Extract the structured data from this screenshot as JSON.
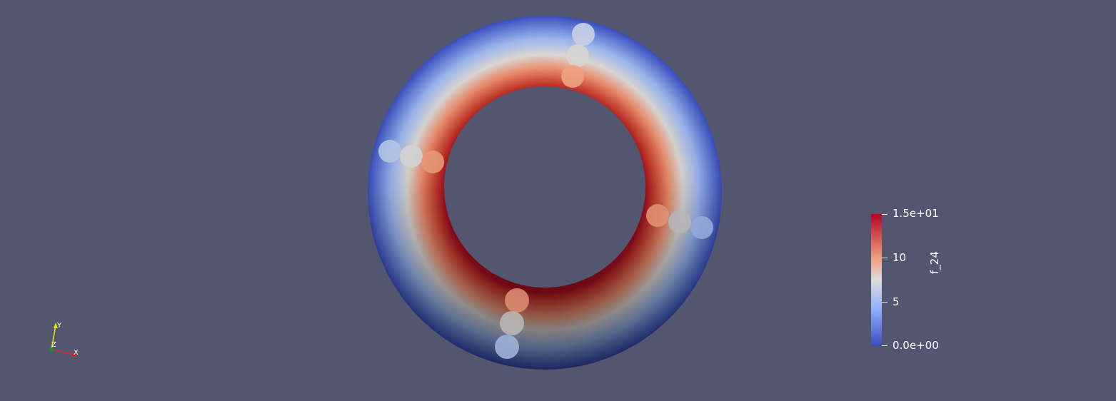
{
  "scalar_bar": {
    "title": "f_24",
    "ticks": [
      "1.5e+01",
      "10",
      "5",
      "0.0e+00"
    ],
    "colors": {
      "high": "#b40426",
      "upper_mid": "#f09d7c",
      "mid": "#dddcdc",
      "lower_mid": "#8eb1fe",
      "low": "#3b4cc0"
    }
  },
  "orientation_axes": {
    "x_label": "X",
    "y_label": "Y",
    "z_label": "Z"
  },
  "background_color": "#52566e"
}
